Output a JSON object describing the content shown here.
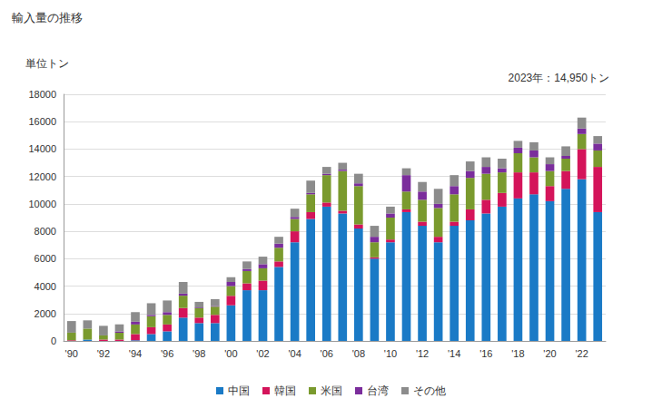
{
  "chart_data": {
    "type": "bar",
    "title": "輸入量の推移",
    "ylabel": "単位トン",
    "annotation": "2023年：14,950トン",
    "stacked": true,
    "grid": true,
    "legend": "bottom",
    "categories": [
      "'90",
      null,
      "'92",
      null,
      "'94",
      null,
      "'96",
      null,
      "'98",
      null,
      "'00",
      null,
      "'02",
      null,
      "'04",
      null,
      "'06",
      null,
      "'08",
      null,
      "'10",
      null,
      "'12",
      null,
      "'14",
      null,
      "'16",
      null,
      "'18",
      null,
      "'20",
      null,
      "'22",
      null
    ],
    "series": [
      {
        "name": "中国",
        "color": "#1a7ac6",
        "values": [
          0,
          100,
          0,
          0,
          50,
          500,
          700,
          1700,
          1300,
          1300,
          2600,
          3700,
          3700,
          5400,
          7200,
          8900,
          9800,
          9300,
          8200,
          6000,
          7200,
          9400,
          8400,
          7200,
          8400,
          8800,
          9300,
          9800,
          10400,
          10700,
          10200,
          11100,
          11800,
          9400
        ]
      },
      {
        "name": "韓国",
        "color": "#d4145a",
        "values": [
          50,
          0,
          100,
          100,
          450,
          500,
          500,
          700,
          400,
          600,
          700,
          500,
          700,
          400,
          800,
          500,
          300,
          200,
          300,
          100,
          200,
          200,
          300,
          400,
          300,
          800,
          1000,
          1000,
          1900,
          1600,
          1100,
          1300,
          2200,
          3300
        ]
      },
      {
        "name": "米国",
        "color": "#7a9a2e",
        "values": [
          550,
          800,
          300,
          500,
          700,
          800,
          700,
          900,
          700,
          600,
          700,
          900,
          900,
          1000,
          900,
          1300,
          2000,
          2900,
          2800,
          1100,
          1600,
          1300,
          1600,
          2100,
          2000,
          2300,
          1900,
          1500,
          1400,
          1100,
          1100,
          900,
          1100,
          1200
        ]
      },
      {
        "name": "台湾",
        "color": "#7b2d9c",
        "values": [
          0,
          0,
          0,
          100,
          200,
          100,
          200,
          150,
          50,
          50,
          300,
          150,
          300,
          300,
          150,
          100,
          100,
          100,
          200,
          400,
          300,
          1200,
          600,
          300,
          600,
          500,
          500,
          300,
          400,
          500,
          500,
          200,
          400,
          500
        ]
      },
      {
        "name": "その他",
        "color": "#8c8c8c",
        "values": [
          850,
          600,
          700,
          500,
          700,
          850,
          850,
          850,
          400,
          500,
          350,
          550,
          550,
          500,
          600,
          900,
          500,
          500,
          700,
          800,
          500,
          500,
          700,
          1100,
          800,
          700,
          700,
          700,
          500,
          600,
          500,
          700,
          800,
          550
        ]
      }
    ],
    "ylim": [
      0,
      18000
    ],
    "yticks": [
      0,
      2000,
      4000,
      6000,
      8000,
      10000,
      12000,
      14000,
      16000,
      18000
    ]
  }
}
